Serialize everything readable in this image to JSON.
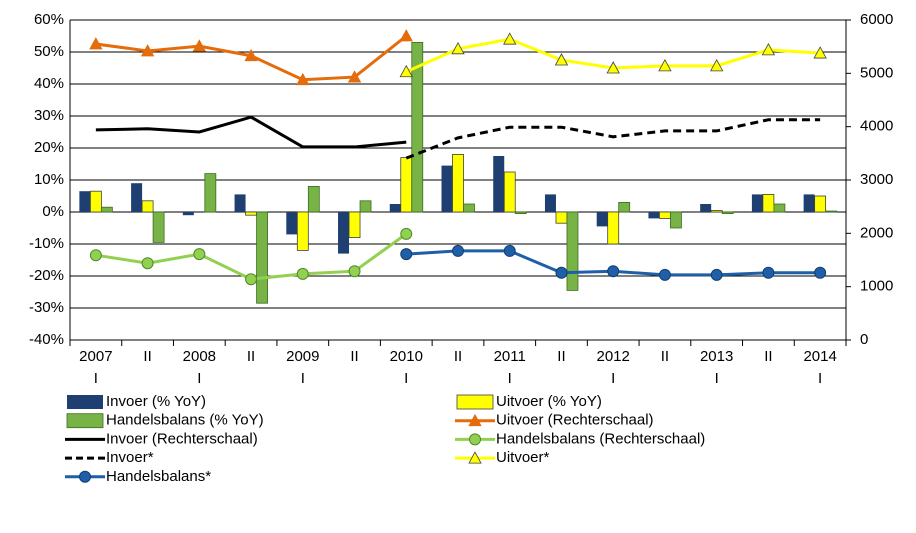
{
  "chart_data": {
    "type": "bar",
    "categories": [
      "2007 I",
      "II",
      "2008 I",
      "II",
      "2009 I",
      "II",
      "2010 I",
      "II",
      "2011 I",
      "II",
      "2012 I",
      "II",
      "2013 I",
      "II",
      "2014 I"
    ],
    "ylim": [
      -40,
      60
    ],
    "yticks": [
      {
        "value": -40,
        "label": "-40%"
      },
      {
        "value": -30,
        "label": "-30%"
      },
      {
        "value": -20,
        "label": "-20%"
      },
      {
        "value": -10,
        "label": "-10%"
      },
      {
        "value": 0,
        "label": "0%"
      },
      {
        "value": 10,
        "label": "10%"
      },
      {
        "value": 20,
        "label": "20%"
      },
      {
        "value": 30,
        "label": "30%"
      },
      {
        "value": 40,
        "label": "40%"
      },
      {
        "value": 50,
        "label": "50%"
      },
      {
        "value": 60,
        "label": "60%"
      }
    ],
    "y2lim": [
      0,
      6000
    ],
    "y2ticks": [
      0,
      1000,
      2000,
      3000,
      4000,
      5000,
      6000
    ],
    "grid": true,
    "legend": "bottom",
    "series": [
      {
        "name": "Invoer (% YoY)",
        "kind": "bar",
        "color": "#1f3f73",
        "values": [
          6.5,
          9,
          -1,
          5.5,
          -7,
          -13,
          2.5,
          14.5,
          17.5,
          5.5,
          -4.5,
          -2,
          2.5,
          5.5,
          5.5
        ]
      },
      {
        "name": "Uitvoer (% YoY)",
        "kind": "bar",
        "color": "#ffff00",
        "values": [
          6.5,
          3.5,
          0,
          -1,
          -12,
          -8,
          17,
          18,
          12.5,
          -3.5,
          -10,
          -2,
          0.5,
          5.5,
          5
        ]
      },
      {
        "name": "Handelsbalans (% YoY)",
        "kind": "bar",
        "color": "#77b347",
        "values": [
          1.5,
          -9.5,
          12,
          -28.5,
          8,
          3.5,
          53,
          2.5,
          -0.5,
          -24.5,
          3,
          -5,
          -0.5,
          2.5,
          0.3
        ]
      },
      {
        "name": "Uitvoer (Rechterschaal)",
        "kind": "line",
        "axis": "y2",
        "color": "#e46c0a",
        "marker": "triangle",
        "values": [
          5550,
          5420,
          5510,
          5330,
          4880,
          4930,
          5700,
          null,
          null,
          null,
          null,
          null,
          null,
          null,
          null
        ]
      },
      {
        "name": "Invoer (Rechterschaal)",
        "kind": "line",
        "axis": "y2",
        "color": "#000000",
        "values": [
          3940,
          3960,
          3900,
          4180,
          3620,
          3620,
          3710,
          null,
          null,
          null,
          null,
          null,
          null,
          null,
          null
        ]
      },
      {
        "name": "Handelsbalans (Rechterschaal)",
        "kind": "line",
        "axis": "y2",
        "color": "#92d050",
        "marker": "circle",
        "values": [
          1590,
          1440,
          1610,
          1140,
          1240,
          1290,
          1990,
          null,
          null,
          null,
          null,
          null,
          null,
          null,
          null
        ]
      },
      {
        "name": "Invoer*",
        "kind": "line",
        "axis": "y2",
        "color": "#000000",
        "dash": true,
        "values": [
          null,
          null,
          null,
          null,
          null,
          null,
          3410,
          3790,
          3990,
          3990,
          3810,
          3920,
          3920,
          4130,
          4130
        ]
      },
      {
        "name": "Uitvoer*",
        "kind": "line",
        "axis": "y2",
        "color": "#ffff00",
        "marker": "triangle",
        "values": [
          null,
          null,
          null,
          null,
          null,
          null,
          5030,
          5460,
          5640,
          5250,
          5100,
          5140,
          5140,
          5440,
          5380
        ]
      },
      {
        "name": "Handelsbalans*",
        "kind": "line",
        "axis": "y2",
        "color": "#1f5fa8",
        "marker": "circle",
        "values": [
          null,
          null,
          null,
          null,
          null,
          null,
          1610,
          1670,
          1670,
          1260,
          1290,
          1220,
          1220,
          1260,
          1260
        ]
      }
    ]
  }
}
